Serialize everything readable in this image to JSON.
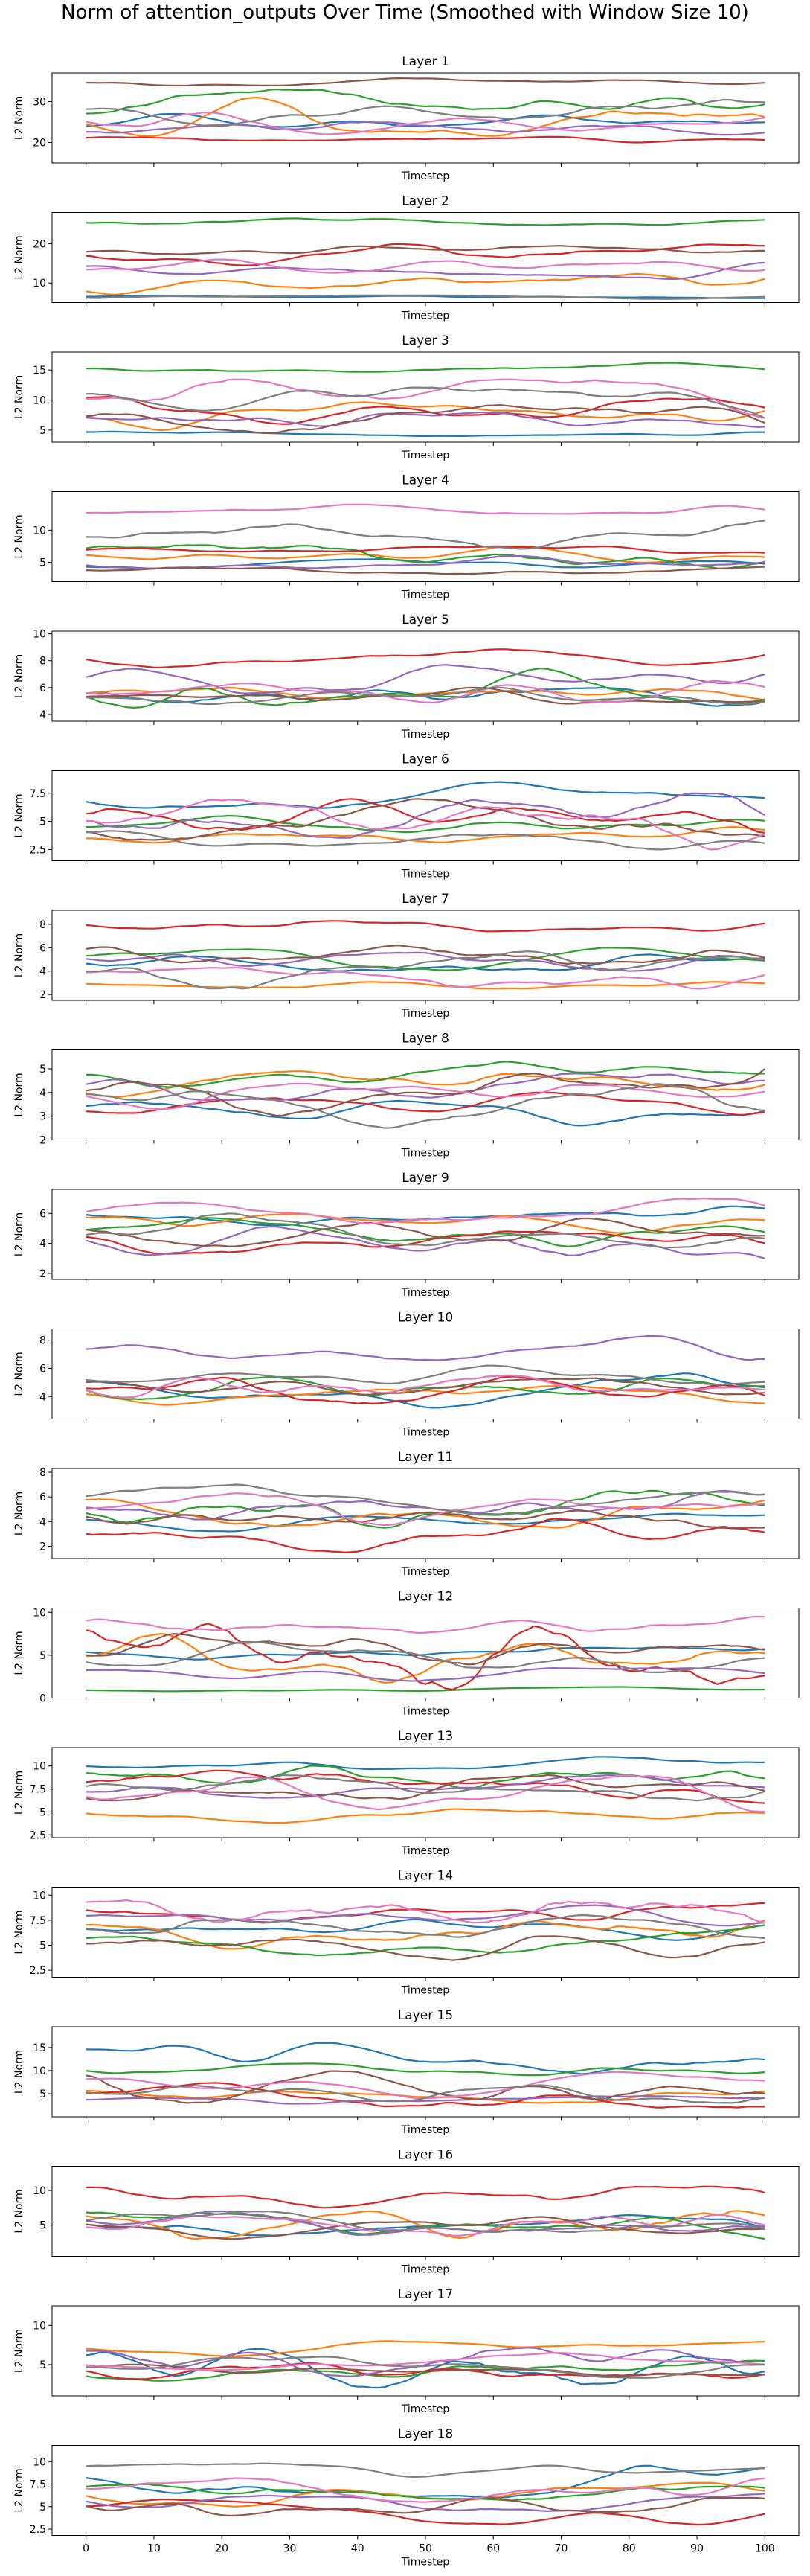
{
  "figure": {
    "title": "Norm of attention_outputs Over Time (Smoothed with Window Size 10)"
  },
  "palette": [
    "#1f77b4",
    "#ff7f0e",
    "#2ca02c",
    "#d62728",
    "#9467bd",
    "#8c564b",
    "#e377c2",
    "#7f7f7f"
  ],
  "chart_data": [
    {
      "type": "line",
      "title": "Layer 1",
      "xlabel": "Timestep",
      "ylabel": "L2 Norm",
      "xlim": [
        0,
        100
      ],
      "ylim": [
        15,
        37
      ],
      "yticks": [
        20,
        30
      ],
      "series": [
        {
          "color": "#1f77b4",
          "base": 24.5,
          "amp": 2.5
        },
        {
          "color": "#ff7f0e",
          "base": 26,
          "amp": 5
        },
        {
          "color": "#2ca02c",
          "base": 27,
          "amp": 6
        },
        {
          "color": "#d62728",
          "base": 21,
          "amp": 1
        },
        {
          "color": "#9467bd",
          "base": 22.5,
          "amp": 2.5
        },
        {
          "color": "#8c564b",
          "base": 34.5,
          "amp": 1.2
        },
        {
          "color": "#e377c2",
          "base": 26,
          "amp": 4
        },
        {
          "color": "#7f7f7f",
          "base": 28,
          "amp": 4
        }
      ]
    },
    {
      "type": "line",
      "title": "Layer 2",
      "xlabel": "Timestep",
      "ylabel": "L2 Norm",
      "xlim": [
        0,
        100
      ],
      "ylim": [
        5,
        28
      ],
      "yticks": [
        10,
        20
      ],
      "series": [
        {
          "color": "#1f77b4",
          "base": 6.5,
          "amp": 0.4
        },
        {
          "color": "#ff7f0e",
          "base": 10,
          "amp": 3
        },
        {
          "color": "#2ca02c",
          "base": 25.5,
          "amp": 1
        },
        {
          "color": "#d62728",
          "base": 17.5,
          "amp": 3
        },
        {
          "color": "#9467bd",
          "base": 13.5,
          "amp": 2.5
        },
        {
          "color": "#8c564b",
          "base": 17,
          "amp": 2.5
        },
        {
          "color": "#e377c2",
          "base": 13,
          "amp": 3
        },
        {
          "color": "#7f7f7f",
          "base": 6.5,
          "amp": 0.6
        }
      ]
    },
    {
      "type": "line",
      "title": "Layer 3",
      "xlabel": "Timestep",
      "ylabel": "L2 Norm",
      "xlim": [
        0,
        100
      ],
      "ylim": [
        3,
        18
      ],
      "yticks": [
        5,
        10,
        15
      ],
      "series": [
        {
          "color": "#1f77b4",
          "base": 4.5,
          "amp": 0.5
        },
        {
          "color": "#ff7f0e",
          "base": 8,
          "amp": 3
        },
        {
          "color": "#2ca02c",
          "base": 15,
          "amp": 1.2
        },
        {
          "color": "#d62728",
          "base": 9,
          "amp": 3
        },
        {
          "color": "#9467bd",
          "base": 7.5,
          "amp": 2
        },
        {
          "color": "#8c564b",
          "base": 7,
          "amp": 2.5
        },
        {
          "color": "#e377c2",
          "base": 10.5,
          "amp": 3.5
        },
        {
          "color": "#7f7f7f",
          "base": 10,
          "amp": 3
        }
      ]
    },
    {
      "type": "line",
      "title": "Layer 4",
      "xlabel": "Timestep",
      "ylabel": "L2 Norm",
      "xlim": [
        0,
        100
      ],
      "ylim": [
        2,
        16
      ],
      "yticks": [
        5,
        10
      ],
      "series": [
        {
          "color": "#1f77b4",
          "base": 4.5,
          "amp": 1
        },
        {
          "color": "#ff7f0e",
          "base": 6,
          "amp": 1.5
        },
        {
          "color": "#2ca02c",
          "base": 6,
          "amp": 2
        },
        {
          "color": "#d62728",
          "base": 6.5,
          "amp": 1
        },
        {
          "color": "#9467bd",
          "base": 5,
          "amp": 1
        },
        {
          "color": "#8c564b",
          "base": 4,
          "amp": 0.8
        },
        {
          "color": "#e377c2",
          "base": 12.5,
          "amp": 1.5
        },
        {
          "color": "#7f7f7f",
          "base": 9,
          "amp": 2.5
        }
      ]
    },
    {
      "type": "line",
      "title": "Layer 5",
      "xlabel": "Timestep",
      "ylabel": "L2 Norm",
      "xlim": [
        0,
        100
      ],
      "ylim": [
        3.5,
        10.2
      ],
      "yticks": [
        4,
        6,
        8,
        10
      ],
      "series": [
        {
          "color": "#1f77b4",
          "base": 5,
          "amp": 1
        },
        {
          "color": "#ff7f0e",
          "base": 5.2,
          "amp": 0.8
        },
        {
          "color": "#2ca02c",
          "base": 6,
          "amp": 1.5
        },
        {
          "color": "#d62728",
          "base": 8.5,
          "amp": 1
        },
        {
          "color": "#9467bd",
          "base": 6.5,
          "amp": 1.2
        },
        {
          "color": "#8c564b",
          "base": 5,
          "amp": 1
        },
        {
          "color": "#e377c2",
          "base": 5.5,
          "amp": 1
        },
        {
          "color": "#7f7f7f",
          "base": 5,
          "amp": 1
        }
      ]
    },
    {
      "type": "line",
      "title": "Layer 6",
      "xlabel": "Timestep",
      "ylabel": "L2 Norm",
      "xlim": [
        0,
        100
      ],
      "ylim": [
        1.5,
        9.5
      ],
      "yticks": [
        2.5,
        5.0,
        7.5
      ],
      "series": [
        {
          "color": "#1f77b4",
          "base": 7,
          "amp": 1.5
        },
        {
          "color": "#ff7f0e",
          "base": 3.5,
          "amp": 1
        },
        {
          "color": "#2ca02c",
          "base": 4.5,
          "amp": 1
        },
        {
          "color": "#d62728",
          "base": 5,
          "amp": 2
        },
        {
          "color": "#9467bd",
          "base": 5,
          "amp": 2.5
        },
        {
          "color": "#8c564b",
          "base": 4.5,
          "amp": 2.5
        },
        {
          "color": "#e377c2",
          "base": 5,
          "amp": 2.5
        },
        {
          "color": "#7f7f7f",
          "base": 4,
          "amp": 1.5
        }
      ]
    },
    {
      "type": "line",
      "title": "Layer 7",
      "xlabel": "Timestep",
      "ylabel": "L2 Norm",
      "xlim": [
        0,
        100
      ],
      "ylim": [
        1.5,
        9.2
      ],
      "yticks": [
        2,
        4,
        6,
        8
      ],
      "series": [
        {
          "color": "#1f77b4",
          "base": 5,
          "amp": 1
        },
        {
          "color": "#ff7f0e",
          "base": 3,
          "amp": 0.5
        },
        {
          "color": "#2ca02c",
          "base": 5,
          "amp": 1
        },
        {
          "color": "#d62728",
          "base": 8,
          "amp": 0.6
        },
        {
          "color": "#9467bd",
          "base": 5,
          "amp": 1
        },
        {
          "color": "#8c564b",
          "base": 5.2,
          "amp": 1
        },
        {
          "color": "#e377c2",
          "base": 3.5,
          "amp": 1
        },
        {
          "color": "#7f7f7f",
          "base": 4.5,
          "amp": 2
        }
      ]
    },
    {
      "type": "line",
      "title": "Layer 8",
      "xlabel": "Timestep",
      "ylabel": "L2 Norm",
      "xlim": [
        0,
        100
      ],
      "ylim": [
        2,
        5.8
      ],
      "yticks": [
        2,
        3,
        4,
        5
      ],
      "series": [
        {
          "color": "#1f77b4",
          "base": 3.3,
          "amp": 0.7
        },
        {
          "color": "#ff7f0e",
          "base": 4.2,
          "amp": 0.7
        },
        {
          "color": "#2ca02c",
          "base": 4.5,
          "amp": 0.8
        },
        {
          "color": "#d62728",
          "base": 3.2,
          "amp": 0.8
        },
        {
          "color": "#9467bd",
          "base": 4,
          "amp": 0.8
        },
        {
          "color": "#8c564b",
          "base": 4,
          "amp": 1
        },
        {
          "color": "#e377c2",
          "base": 4.2,
          "amp": 0.9
        },
        {
          "color": "#7f7f7f",
          "base": 3.5,
          "amp": 1
        }
      ]
    },
    {
      "type": "line",
      "title": "Layer 9",
      "xlabel": "Timestep",
      "ylabel": "L2 Norm",
      "xlim": [
        0,
        100
      ],
      "ylim": [
        1.6,
        7.6
      ],
      "yticks": [
        2,
        4,
        6
      ],
      "series": [
        {
          "color": "#1f77b4",
          "base": 6,
          "amp": 0.8
        },
        {
          "color": "#ff7f0e",
          "base": 5.5,
          "amp": 0.8
        },
        {
          "color": "#2ca02c",
          "base": 4.5,
          "amp": 1.2
        },
        {
          "color": "#d62728",
          "base": 4.5,
          "amp": 1.2
        },
        {
          "color": "#9467bd",
          "base": 4.5,
          "amp": 1.5
        },
        {
          "color": "#8c564b",
          "base": 5,
          "amp": 1.2
        },
        {
          "color": "#e377c2",
          "base": 5.5,
          "amp": 1.5
        },
        {
          "color": "#7f7f7f",
          "base": 4,
          "amp": 2
        }
      ]
    },
    {
      "type": "line",
      "title": "Layer 10",
      "xlabel": "Timestep",
      "ylabel": "L2 Norm",
      "xlim": [
        0,
        100
      ],
      "ylim": [
        2.4,
        8.8
      ],
      "yticks": [
        4,
        6,
        8
      ],
      "series": [
        {
          "color": "#1f77b4",
          "base": 4.5,
          "amp": 1.3
        },
        {
          "color": "#ff7f0e",
          "base": 4.2,
          "amp": 0.8
        },
        {
          "color": "#2ca02c",
          "base": 4.8,
          "amp": 1
        },
        {
          "color": "#d62728",
          "base": 4.5,
          "amp": 1
        },
        {
          "color": "#9467bd",
          "base": 7.3,
          "amp": 1
        },
        {
          "color": "#8c564b",
          "base": 4.5,
          "amp": 0.8
        },
        {
          "color": "#e377c2",
          "base": 4.5,
          "amp": 1
        },
        {
          "color": "#7f7f7f",
          "base": 5.2,
          "amp": 1
        }
      ]
    },
    {
      "type": "line",
      "title": "Layer 11",
      "xlabel": "Timestep",
      "ylabel": "L2 Norm",
      "xlim": [
        0,
        100
      ],
      "ylim": [
        1,
        8.3
      ],
      "yticks": [
        2,
        4,
        6,
        8
      ],
      "series": [
        {
          "color": "#1f77b4",
          "base": 4.2,
          "amp": 1
        },
        {
          "color": "#ff7f0e",
          "base": 5,
          "amp": 1.5
        },
        {
          "color": "#2ca02c",
          "base": 5,
          "amp": 1.5
        },
        {
          "color": "#d62728",
          "base": 3,
          "amp": 1.5
        },
        {
          "color": "#9467bd",
          "base": 5,
          "amp": 1.5
        },
        {
          "color": "#8c564b",
          "base": 4.5,
          "amp": 1
        },
        {
          "color": "#e377c2",
          "base": 4.8,
          "amp": 1.5
        },
        {
          "color": "#7f7f7f",
          "base": 5.5,
          "amp": 1.5
        }
      ]
    },
    {
      "type": "line",
      "title": "Layer 12",
      "xlabel": "Timestep",
      "ylabel": "L2 Norm",
      "xlim": [
        0,
        100
      ],
      "ylim": [
        0,
        10.5
      ],
      "yticks": [
        0,
        5,
        10
      ],
      "series": [
        {
          "color": "#1f77b4",
          "base": 5.5,
          "amp": 1
        },
        {
          "color": "#ff7f0e",
          "base": 4.5,
          "amp": 3
        },
        {
          "color": "#2ca02c",
          "base": 1,
          "amp": 0.3
        },
        {
          "color": "#d62728",
          "base": 5,
          "amp": 4
        },
        {
          "color": "#9467bd",
          "base": 3,
          "amp": 1
        },
        {
          "color": "#8c564b",
          "base": 4.5,
          "amp": 3
        },
        {
          "color": "#e377c2",
          "base": 8,
          "amp": 1.5
        },
        {
          "color": "#7f7f7f",
          "base": 5,
          "amp": 2
        }
      ]
    },
    {
      "type": "line",
      "title": "Layer 13",
      "xlabel": "Timestep",
      "ylabel": "L2 Norm",
      "xlim": [
        0,
        100
      ],
      "ylim": [
        2.2,
        12
      ],
      "yticks": [
        2.5,
        5.0,
        7.5,
        10.0
      ],
      "series": [
        {
          "color": "#1f77b4",
          "base": 10,
          "amp": 1
        },
        {
          "color": "#ff7f0e",
          "base": 5,
          "amp": 1.2
        },
        {
          "color": "#2ca02c",
          "base": 8,
          "amp": 2
        },
        {
          "color": "#d62728",
          "base": 7.5,
          "amp": 2
        },
        {
          "color": "#9467bd",
          "base": 7,
          "amp": 2
        },
        {
          "color": "#8c564b",
          "base": 6.5,
          "amp": 2.5
        },
        {
          "color": "#e377c2",
          "base": 7,
          "amp": 2
        },
        {
          "color": "#7f7f7f",
          "base": 6.5,
          "amp": 2.5
        }
      ]
    },
    {
      "type": "line",
      "title": "Layer 14",
      "xlabel": "Timestep",
      "ylabel": "L2 Norm",
      "xlim": [
        0,
        100
      ],
      "ylim": [
        1.8,
        10.8
      ],
      "yticks": [
        2.5,
        5.0,
        7.5,
        10.0
      ],
      "series": [
        {
          "color": "#1f77b4",
          "base": 7,
          "amp": 1.5
        },
        {
          "color": "#ff7f0e",
          "base": 6,
          "amp": 1.5
        },
        {
          "color": "#2ca02c",
          "base": 5,
          "amp": 2
        },
        {
          "color": "#d62728",
          "base": 8.5,
          "amp": 1.2
        },
        {
          "color": "#9467bd",
          "base": 7.5,
          "amp": 1.5
        },
        {
          "color": "#8c564b",
          "base": 5,
          "amp": 1.5
        },
        {
          "color": "#e377c2",
          "base": 8,
          "amp": 1.5
        },
        {
          "color": "#7f7f7f",
          "base": 6.5,
          "amp": 1.5
        }
      ]
    },
    {
      "type": "line",
      "title": "Layer 15",
      "xlabel": "Timestep",
      "ylabel": "L2 Norm",
      "xlim": [
        0,
        100
      ],
      "ylim": [
        0,
        19.5
      ],
      "yticks": [
        5,
        10,
        15
      ],
      "series": [
        {
          "color": "#1f77b4",
          "base": 12,
          "amp": 4
        },
        {
          "color": "#ff7f0e",
          "base": 5,
          "amp": 2
        },
        {
          "color": "#2ca02c",
          "base": 10.5,
          "amp": 1.5
        },
        {
          "color": "#d62728",
          "base": 5,
          "amp": 3
        },
        {
          "color": "#9467bd",
          "base": 3.5,
          "amp": 1
        },
        {
          "color": "#8c564b",
          "base": 7,
          "amp": 4
        },
        {
          "color": "#e377c2",
          "base": 7,
          "amp": 3
        },
        {
          "color": "#7f7f7f",
          "base": 5,
          "amp": 2
        }
      ]
    },
    {
      "type": "line",
      "title": "Layer 16",
      "xlabel": "Timestep",
      "ylabel": "L2 Norm",
      "xlim": [
        0,
        100
      ],
      "ylim": [
        0.5,
        13.5
      ],
      "yticks": [
        5,
        10
      ],
      "series": [
        {
          "color": "#1f77b4",
          "base": 5,
          "amp": 1.5
        },
        {
          "color": "#ff7f0e",
          "base": 6,
          "amp": 3
        },
        {
          "color": "#2ca02c",
          "base": 6,
          "amp": 3
        },
        {
          "color": "#d62728",
          "base": 9.5,
          "amp": 2
        },
        {
          "color": "#9467bd",
          "base": 5,
          "amp": 2
        },
        {
          "color": "#8c564b",
          "base": 5,
          "amp": 2
        },
        {
          "color": "#e377c2",
          "base": 4.5,
          "amp": 2
        },
        {
          "color": "#7f7f7f",
          "base": 5,
          "amp": 2
        }
      ]
    },
    {
      "type": "line",
      "title": "Layer 17",
      "xlabel": "Timestep",
      "ylabel": "L2 Norm",
      "xlim": [
        0,
        100
      ],
      "ylim": [
        1,
        12.5
      ],
      "yticks": [
        5,
        10
      ],
      "series": [
        {
          "color": "#1f77b4",
          "base": 4,
          "amp": 3
        },
        {
          "color": "#ff7f0e",
          "base": 7,
          "amp": 1
        },
        {
          "color": "#2ca02c",
          "base": 4,
          "amp": 1.5
        },
        {
          "color": "#d62728",
          "base": 4,
          "amp": 1.2
        },
        {
          "color": "#9467bd",
          "base": 5.5,
          "amp": 2
        },
        {
          "color": "#8c564b",
          "base": 4,
          "amp": 1
        },
        {
          "color": "#e377c2",
          "base": 5,
          "amp": 1.5
        },
        {
          "color": "#7f7f7f",
          "base": 4.5,
          "amp": 1.5
        }
      ]
    },
    {
      "type": "line",
      "title": "Layer 18",
      "xlabel": "Timestep",
      "ylabel": "L2 Norm",
      "xlim": [
        0,
        100
      ],
      "ylim": [
        1.8,
        11.8
      ],
      "yticks": [
        2.5,
        5.0,
        7.5,
        10.0
      ],
      "series": [
        {
          "color": "#1f77b4",
          "base": 8,
          "amp": 2
        },
        {
          "color": "#ff7f0e",
          "base": 6.5,
          "amp": 1.5
        },
        {
          "color": "#2ca02c",
          "base": 6,
          "amp": 1.5
        },
        {
          "color": "#d62728",
          "base": 4.5,
          "amp": 1.5
        },
        {
          "color": "#9467bd",
          "base": 6,
          "amp": 1.5
        },
        {
          "color": "#8c564b",
          "base": 5.5,
          "amp": 1.5
        },
        {
          "color": "#e377c2",
          "base": 7,
          "amp": 1.5
        },
        {
          "color": "#7f7f7f",
          "base": 9,
          "amp": 0.8
        }
      ]
    }
  ],
  "shared_xticks": [
    0,
    10,
    20,
    30,
    40,
    50,
    60,
    70,
    80,
    90,
    100
  ]
}
